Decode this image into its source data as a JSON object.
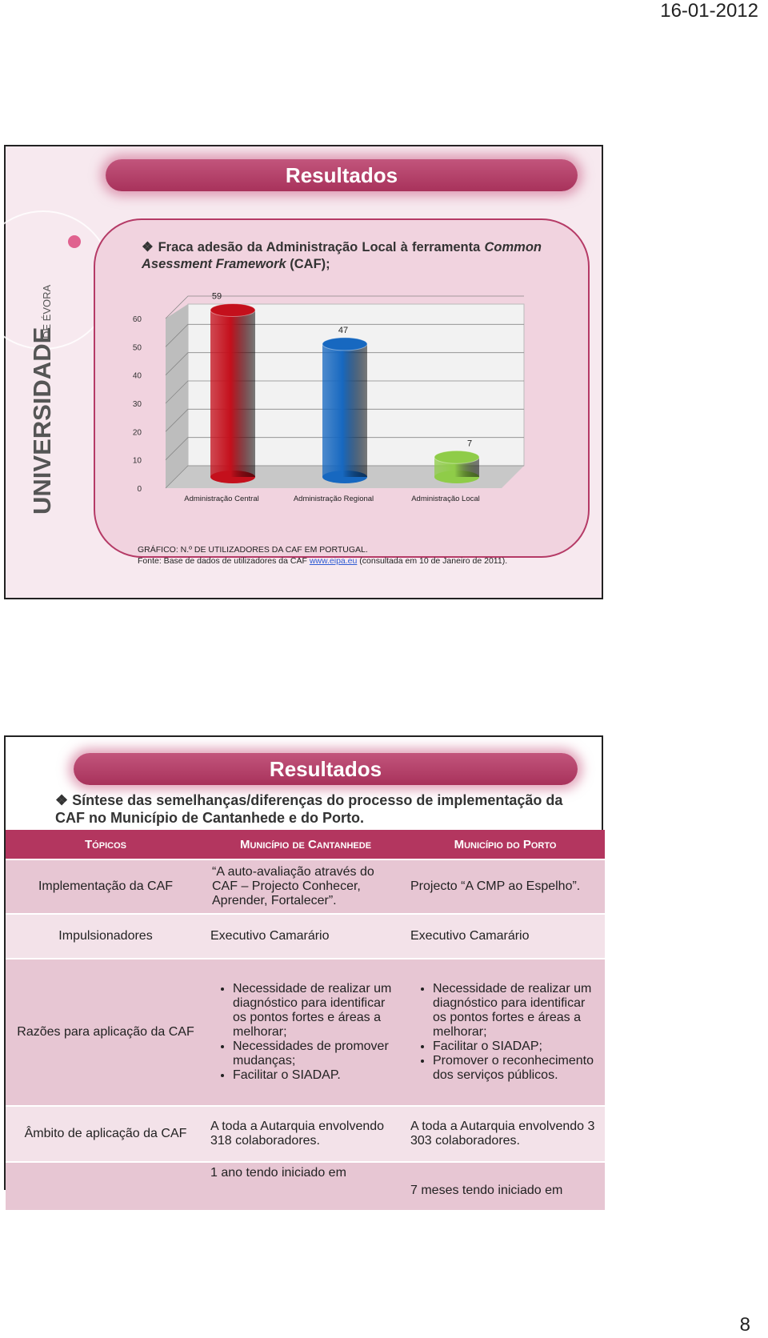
{
  "header": {
    "date": "16-01-2012"
  },
  "slide1": {
    "title": "Resultados",
    "bullet": {
      "text1": "Fraca adesão da Administração Local à ferramenta",
      "italic": "Common Asessment Framework",
      "text2": "(CAF);"
    },
    "logo": {
      "name": "UNIVERSIDADE",
      "place": "DE ÉVORA"
    },
    "caption": {
      "line1": "GRÁFICO: N.º DE UTILIZADORES DA CAF EM PORTUGAL.",
      "source": "Fonte: Base de dados de utilizadores da CAF",
      "link": "www.eipa.eu",
      "date": "(consultada em 10 de Janeiro de 2011)."
    }
  },
  "chart_data": {
    "type": "bar",
    "categories": [
      "Administração Central",
      "Administração Regional",
      "Administração Local"
    ],
    "values": [
      59,
      47,
      7
    ],
    "colors": [
      "#c4101c",
      "#1768c0",
      "#8fcc48"
    ],
    "ylim": [
      0,
      60
    ],
    "yticks": [
      0,
      10,
      20,
      30,
      40,
      50,
      60
    ],
    "grid": true
  },
  "slide2": {
    "title": "Resultados",
    "bullet": "Síntese das semelhanças/diferenças do processo de implementação da CAF no Município de Cantanhede e do Porto.",
    "table": {
      "headers": [
        "Tópicos",
        "Município de Cantanhede",
        "Município do Porto"
      ],
      "rows": [
        {
          "topic": "Implementação da CAF",
          "cantanhede": "“A auto-avaliação através do CAF – Projecto Conhecer, Aprender, Fortalecer”.",
          "porto": "Projecto “A CMP ao Espelho”."
        },
        {
          "topic": "Impulsionadores",
          "cantanhede": "Executivo Camarário",
          "porto": "Executivo Camarário"
        },
        {
          "topic": "Razões para aplicação da CAF",
          "cantanhede": [
            "Necessidade de realizar um diagnóstico para identificar os pontos fortes e áreas a melhorar;",
            "Necessidades de promover mudanças;",
            "Facilitar o SIADAP."
          ],
          "porto": [
            "Necessidade de realizar um diagnóstico para identificar os pontos fortes e áreas a melhorar;",
            "Facilitar o SIADAP;",
            "Promover o reconhecimento dos serviços públicos."
          ]
        },
        {
          "topic": "Âmbito de aplicação da CAF",
          "cantanhede": "A toda a Autarquia envolvendo 318 colaboradores.",
          "porto": "A toda a Autarquia envolvendo 3 303 colaboradores."
        },
        {
          "cantanhede": "1 ano tendo iniciado em",
          "porto": "7 meses tendo iniciado em"
        }
      ]
    }
  },
  "footer": {
    "page": "8"
  }
}
